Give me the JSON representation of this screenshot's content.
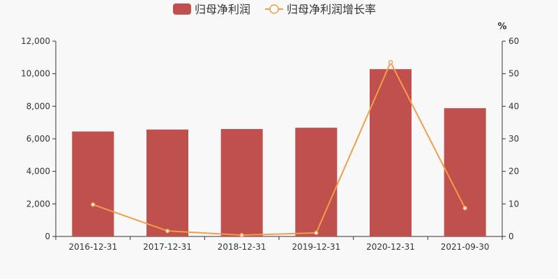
{
  "chart_data": {
    "type": "bar",
    "title": "",
    "xlabel": "",
    "categories": [
      "2016-12-31",
      "2017-12-31",
      "2018-12-31",
      "2019-12-31",
      "2020-12-31",
      "2021-09-30"
    ],
    "series": [
      {
        "name": "归母净利润",
        "type": "bar",
        "axis": "left",
        "color": "#c0504d",
        "values": [
          6450,
          6570,
          6600,
          6680,
          10280,
          7880
        ]
      },
      {
        "name": "归母净利润增长率",
        "type": "line",
        "axis": "right",
        "color": "#f39c4a",
        "values": [
          9.8,
          1.7,
          0.4,
          1.1,
          53.5,
          8.7
        ]
      }
    ],
    "y_left": {
      "ylim": [
        0,
        12000
      ],
      "ticks": [
        0,
        2000,
        4000,
        6000,
        8000,
        10000,
        12000
      ],
      "tick_labels": [
        "0",
        "2,000",
        "4,000",
        "6,000",
        "8,000",
        "10,000",
        "12,000"
      ]
    },
    "y_right": {
      "ylim": [
        0,
        60
      ],
      "unit": "%",
      "ticks": [
        0,
        10,
        20,
        30,
        40,
        50,
        60
      ],
      "tick_labels": [
        "0",
        "10",
        "20",
        "30",
        "40",
        "50",
        "60"
      ]
    },
    "grid": false,
    "legend_position": "top-center"
  }
}
